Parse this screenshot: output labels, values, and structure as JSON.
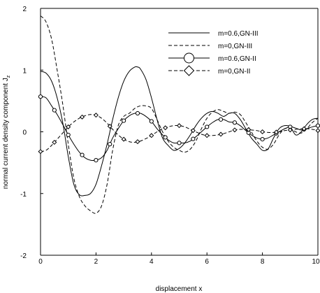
{
  "chart_data": {
    "type": "line",
    "xlabel": "displacement x",
    "ylabel": "normal current density component J",
    "ylabel_subscript": "z",
    "xlim": [
      0,
      10
    ],
    "ylim": [
      -2,
      2
    ],
    "xticks": [
      0,
      2,
      4,
      6,
      8,
      10
    ],
    "yticks": [
      -2,
      -1,
      0,
      1,
      2
    ],
    "grid": false,
    "legend_position": "top-right",
    "series": [
      {
        "name": "m=0.6,GN-III",
        "style": "solid",
        "marker": "none",
        "x": [
          0,
          0.2,
          0.4,
          0.6,
          0.8,
          1.0,
          1.2,
          1.4,
          1.6,
          1.8,
          2.0,
          2.2,
          2.4,
          2.6,
          2.8,
          3.0,
          3.2,
          3.4,
          3.5,
          3.6,
          3.8,
          4.0,
          4.2,
          4.4,
          4.6,
          4.8,
          5.0,
          5.2,
          5.4,
          5.6,
          5.8,
          6.0,
          6.2,
          6.4,
          6.6,
          6.8,
          7.0,
          7.2,
          7.4,
          7.6,
          7.8,
          8.0,
          8.2,
          8.4,
          8.6,
          8.8,
          9.0,
          9.2,
          9.4,
          9.6,
          9.8,
          10.0
        ],
        "y": [
          0.98,
          0.95,
          0.82,
          0.55,
          0.15,
          -0.4,
          -0.85,
          -1.02,
          -1.03,
          -1.0,
          -0.85,
          -0.55,
          -0.2,
          0.2,
          0.55,
          0.82,
          0.98,
          1.05,
          1.05,
          1.02,
          0.85,
          0.55,
          0.2,
          -0.1,
          -0.22,
          -0.3,
          -0.27,
          -0.18,
          -0.05,
          0.1,
          0.22,
          0.3,
          0.33,
          0.3,
          0.25,
          0.3,
          0.3,
          0.2,
          0.05,
          -0.1,
          -0.2,
          -0.3,
          -0.28,
          -0.1,
          0.05,
          0.1,
          0.08,
          -0.05,
          0.0,
          0.12,
          0.2,
          0.22
        ]
      },
      {
        "name": "m=0,GN-III",
        "style": "dashed",
        "marker": "none",
        "x": [
          0,
          0.2,
          0.4,
          0.6,
          0.8,
          1.0,
          1.2,
          1.4,
          1.6,
          1.8,
          2.0,
          2.2,
          2.4,
          2.6,
          2.8,
          3.0,
          3.2,
          3.4,
          3.6,
          3.8,
          4.0,
          4.2,
          4.4,
          4.6,
          4.8,
          5.0,
          5.2,
          5.4,
          5.6,
          5.8,
          6.0,
          6.2,
          6.4,
          6.6,
          6.8,
          7.0,
          7.2,
          7.4,
          7.6,
          7.8,
          8.0,
          8.2,
          8.4,
          8.6,
          8.8,
          9.0,
          9.2,
          9.4,
          9.6,
          9.8,
          10.0
        ],
        "y": [
          1.88,
          1.78,
          1.5,
          1.0,
          0.45,
          -0.2,
          -0.75,
          -1.05,
          -1.2,
          -1.28,
          -1.32,
          -1.2,
          -0.85,
          -0.3,
          0.1,
          0.25,
          0.3,
          0.38,
          0.42,
          0.42,
          0.38,
          0.2,
          0.0,
          -0.15,
          -0.25,
          -0.3,
          -0.33,
          -0.28,
          -0.15,
          0.05,
          0.22,
          0.32,
          0.36,
          0.33,
          0.3,
          0.32,
          0.28,
          0.15,
          0.0,
          -0.15,
          -0.25,
          -0.28,
          -0.2,
          -0.05,
          0.05,
          0.05,
          0.0,
          -0.02,
          0.05,
          0.15,
          0.22
        ]
      },
      {
        "name": "m=0.6,GN-II",
        "style": "solid",
        "marker": "circle",
        "x": [
          0,
          0.2,
          0.4,
          0.6,
          0.8,
          1.0,
          1.2,
          1.4,
          1.6,
          1.8,
          2.0,
          2.2,
          2.4,
          2.6,
          2.8,
          3.0,
          3.2,
          3.4,
          3.6,
          3.8,
          4.0,
          4.2,
          4.4,
          4.6,
          4.8,
          5.0,
          5.2,
          5.4,
          5.6,
          5.8,
          6.0,
          6.2,
          6.4,
          6.6,
          6.8,
          7.0,
          7.2,
          7.4,
          7.6,
          7.8,
          8.0,
          8.2,
          8.4,
          8.6,
          8.8,
          9.0,
          9.2,
          9.4,
          9.6,
          9.8,
          10.0
        ],
        "y": [
          0.57,
          0.55,
          0.42,
          0.28,
          0.12,
          -0.05,
          -0.2,
          -0.33,
          -0.42,
          -0.46,
          -0.46,
          -0.42,
          -0.3,
          -0.1,
          0.05,
          0.18,
          0.26,
          0.3,
          0.3,
          0.25,
          0.17,
          0.05,
          -0.05,
          -0.13,
          -0.18,
          -0.18,
          -0.18,
          -0.15,
          -0.08,
          0.0,
          0.08,
          0.15,
          0.2,
          0.2,
          0.16,
          0.15,
          0.1,
          0.02,
          -0.05,
          -0.1,
          -0.12,
          -0.1,
          -0.05,
          0.0,
          0.05,
          0.08,
          0.06,
          0.03,
          0.05,
          0.08,
          0.1
        ],
        "marker_x": [
          0,
          0.5,
          1.0,
          1.5,
          2.0,
          2.5,
          3.0,
          3.5,
          4.0,
          4.5,
          5.0,
          5.5,
          6.0,
          6.5,
          7.0,
          7.5,
          8.0,
          8.5,
          9.0,
          9.5,
          10.0
        ]
      },
      {
        "name": "m=0,GN-II",
        "style": "dashed",
        "marker": "diamond",
        "x": [
          0,
          0.2,
          0.4,
          0.6,
          0.8,
          1.0,
          1.2,
          1.4,
          1.6,
          1.8,
          2.0,
          2.2,
          2.4,
          2.6,
          2.8,
          3.0,
          3.2,
          3.4,
          3.6,
          3.8,
          4.0,
          4.2,
          4.4,
          4.6,
          4.8,
          5.0,
          5.2,
          5.4,
          5.6,
          5.8,
          6.0,
          6.2,
          6.4,
          6.6,
          6.8,
          7.0,
          7.2,
          7.4,
          7.6,
          7.8,
          8.0,
          8.2,
          8.4,
          8.6,
          8.8,
          9.0,
          9.2,
          9.4,
          9.6,
          9.8,
          10.0
        ],
        "y": [
          -0.32,
          -0.3,
          -0.22,
          -0.12,
          -0.02,
          0.08,
          0.16,
          0.22,
          0.26,
          0.28,
          0.27,
          0.22,
          0.14,
          0.04,
          -0.05,
          -0.12,
          -0.16,
          -0.17,
          -0.15,
          -0.11,
          -0.06,
          0.0,
          0.05,
          0.08,
          0.1,
          0.1,
          0.08,
          0.04,
          0.0,
          -0.04,
          -0.06,
          -0.06,
          -0.05,
          -0.03,
          0.0,
          0.03,
          0.04,
          0.04,
          0.03,
          0.02,
          0.0,
          -0.01,
          -0.01,
          0.0,
          0.02,
          0.03,
          0.04,
          0.05,
          0.05,
          0.04,
          0.02
        ],
        "marker_x": [
          0,
          0.5,
          1.0,
          1.5,
          2.0,
          2.5,
          3.0,
          3.5,
          4.0,
          4.5,
          5.0,
          5.5,
          6.0,
          6.5,
          7.0,
          7.5,
          8.0,
          8.5,
          9.0,
          9.5,
          10.0
        ]
      }
    ]
  }
}
